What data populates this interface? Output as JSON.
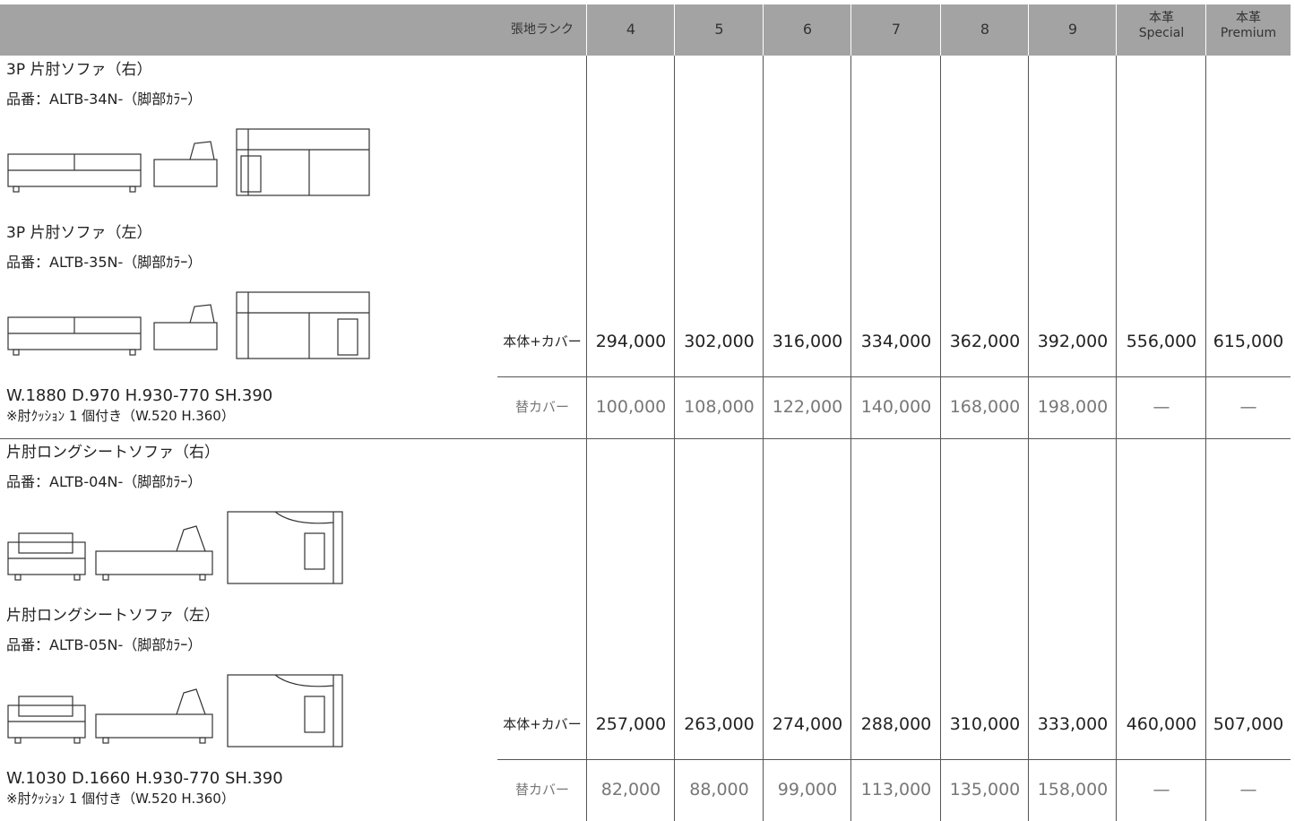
{
  "header": {
    "rank_label": "張地ランク",
    "columns": [
      [
        "4"
      ],
      [
        "5"
      ],
      [
        "6"
      ],
      [
        "7"
      ],
      [
        "8"
      ],
      [
        "9"
      ],
      [
        "本革",
        "Special"
      ],
      [
        "本革",
        "Premium"
      ]
    ]
  },
  "sections": [
    {
      "products": [
        {
          "name": "3P 片肘ソファ（右）",
          "code": "品番：ALTB-34N-（脚部ｶﾗｰ）"
        },
        {
          "name": "3P 片肘ソファ（左）",
          "code": "品番：ALTB-35N-（脚部ｶﾗｰ）"
        }
      ],
      "dimensions": "W.1880  D.970  H.930-770  SH.390",
      "note": "※肘ｸｯｼｮﾝ 1 個付き（W.520 H.360）",
      "rows": [
        {
          "label": "本体+カバー",
          "values": [
            "294,000",
            "302,000",
            "316,000",
            "334,000",
            "362,000",
            "392,000",
            "556,000",
            "615,000"
          ]
        },
        {
          "label": "替カバー",
          "values": [
            "100,000",
            "108,000",
            "122,000",
            "140,000",
            "168,000",
            "198,000",
            "—",
            "—"
          ]
        }
      ]
    },
    {
      "products": [
        {
          "name": "片肘ロングシートソファ（右）",
          "code": "品番：ALTB-04N-（脚部ｶﾗｰ）"
        },
        {
          "name": "片肘ロングシートソファ（左）",
          "code": "品番：ALTB-05N-（脚部ｶﾗｰ）"
        }
      ],
      "dimensions": "W.1030  D.1660  H.930-770  SH.390",
      "note": "※肘ｸｯｼｮﾝ 1 個付き（W.520 H.360）",
      "rows": [
        {
          "label": "本体+カバー",
          "values": [
            "257,000",
            "263,000",
            "274,000",
            "288,000",
            "310,000",
            "333,000",
            "460,000",
            "507,000"
          ]
        },
        {
          "label": "替カバー",
          "values": [
            "82,000",
            "88,000",
            "99,000",
            "113,000",
            "135,000",
            "158,000",
            "—",
            "—"
          ]
        }
      ]
    }
  ]
}
